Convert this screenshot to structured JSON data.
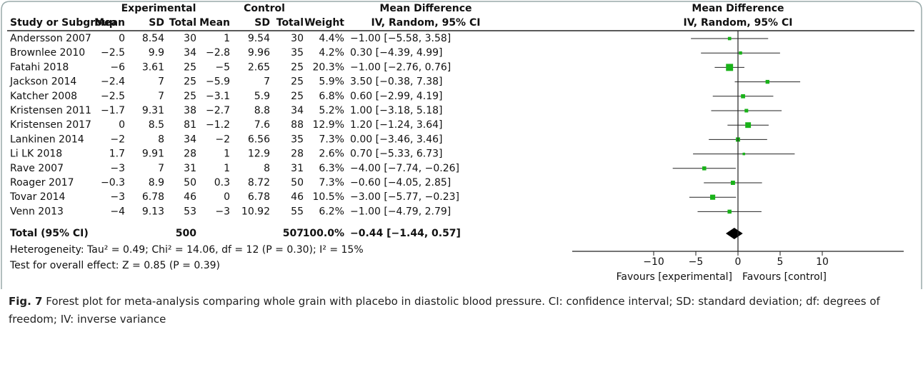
{
  "chart_data": {
    "type": "forest",
    "headers": {
      "group_experimental": "Experimental",
      "group_control": "Control",
      "effect_title": "Mean Difference",
      "effect_method": "IV, Random, 95% CI",
      "plot_title": "Mean Difference",
      "plot_method": "IV, Random, 95% CI",
      "columns": [
        "Study or Subgroup",
        "Mean",
        "SD",
        "Total",
        "Mean",
        "SD",
        "Total",
        "Weight"
      ]
    },
    "studies": [
      {
        "name": "Andersson 2007",
        "e_mean": "0",
        "e_sd": 8.54,
        "e_total": 30,
        "c_mean": "1",
        "c_sd": 9.54,
        "c_total": 30,
        "weight": 4.4,
        "weight_label": "4.4%",
        "ci_label": "−1.00 [−5.58, 3.58]",
        "md": -1.0,
        "lo": -5.58,
        "hi": 3.58
      },
      {
        "name": "Brownlee 2010",
        "e_mean": "−2.5",
        "e_sd": 9.9,
        "e_total": 34,
        "c_mean": "−2.8",
        "c_sd": 9.96,
        "c_total": 35,
        "weight": 4.2,
        "weight_label": "4.2%",
        "ci_label": "0.30 [−4.39, 4.99]",
        "md": 0.3,
        "lo": -4.39,
        "hi": 4.99
      },
      {
        "name": "Fatahi 2018",
        "e_mean": "−6",
        "e_sd": 3.61,
        "e_total": 25,
        "c_mean": "−5",
        "c_sd": 2.65,
        "c_total": 25,
        "weight": 20.3,
        "weight_label": "20.3%",
        "ci_label": "−1.00 [−2.76, 0.76]",
        "md": -1.0,
        "lo": -2.76,
        "hi": 0.76
      },
      {
        "name": "Jackson 2014",
        "e_mean": "−2.4",
        "e_sd": 7,
        "e_total": 25,
        "c_mean": "−5.9",
        "c_sd": 7,
        "c_total": 25,
        "weight": 5.9,
        "weight_label": "5.9%",
        "ci_label": "3.50 [−0.38, 7.38]",
        "md": 3.5,
        "lo": -0.38,
        "hi": 7.38
      },
      {
        "name": "Katcher 2008",
        "e_mean": "−2.5",
        "e_sd": 7,
        "e_total": 25,
        "c_mean": "−3.1",
        "c_sd": 5.9,
        "c_total": 25,
        "weight": 6.8,
        "weight_label": "6.8%",
        "ci_label": "0.60 [−2.99, 4.19]",
        "md": 0.6,
        "lo": -2.99,
        "hi": 4.19
      },
      {
        "name": "Kristensen 2011",
        "e_mean": "−1.7",
        "e_sd": 9.31,
        "e_total": 38,
        "c_mean": "−2.7",
        "c_sd": 8.8,
        "c_total": 34,
        "weight": 5.2,
        "weight_label": "5.2%",
        "ci_label": "1.00 [−3.18, 5.18]",
        "md": 1.0,
        "lo": -3.18,
        "hi": 5.18
      },
      {
        "name": "Kristensen 2017",
        "e_mean": "0",
        "e_sd": 8.5,
        "e_total": 81,
        "c_mean": "−1.2",
        "c_sd": 7.6,
        "c_total": 88,
        "weight": 12.9,
        "weight_label": "12.9%",
        "ci_label": "1.20 [−1.24, 3.64]",
        "md": 1.2,
        "lo": -1.24,
        "hi": 3.64
      },
      {
        "name": "Lankinen 2014",
        "e_mean": "−2",
        "e_sd": 8,
        "e_total": 34,
        "c_mean": "−2",
        "c_sd": 6.56,
        "c_total": 35,
        "weight": 7.3,
        "weight_label": "7.3%",
        "ci_label": "0.00 [−3.46, 3.46]",
        "md": 0.0,
        "lo": -3.46,
        "hi": 3.46
      },
      {
        "name": "Li LK 2018",
        "e_mean": "1.7",
        "e_sd": 9.91,
        "e_total": 28,
        "c_mean": "1",
        "c_sd": 12.9,
        "c_total": 28,
        "weight": 2.6,
        "weight_label": "2.6%",
        "ci_label": "0.70 [−5.33, 6.73]",
        "md": 0.7,
        "lo": -5.33,
        "hi": 6.73
      },
      {
        "name": "Rave 2007",
        "e_mean": "−3",
        "e_sd": 7,
        "e_total": 31,
        "c_mean": "1",
        "c_sd": 8,
        "c_total": 31,
        "weight": 6.3,
        "weight_label": "6.3%",
        "ci_label": "−4.00 [−7.74, −0.26]",
        "md": -4.0,
        "lo": -7.74,
        "hi": -0.26
      },
      {
        "name": "Roager 2017",
        "e_mean": "−0.3",
        "e_sd": 8.9,
        "e_total": 50,
        "c_mean": "0.3",
        "c_sd": 8.72,
        "c_total": 50,
        "weight": 7.3,
        "weight_label": "7.3%",
        "ci_label": "−0.60 [−4.05, 2.85]",
        "md": -0.6,
        "lo": -4.05,
        "hi": 2.85
      },
      {
        "name": "Tovar 2014",
        "e_mean": "−3",
        "e_sd": 6.78,
        "e_total": 46,
        "c_mean": "0",
        "c_sd": 6.78,
        "c_total": 46,
        "weight": 10.5,
        "weight_label": "10.5%",
        "ci_label": "−3.00 [−5.77, −0.23]",
        "md": -3.0,
        "lo": -5.77,
        "hi": -0.23
      },
      {
        "name": "Venn 2013",
        "e_mean": "−4",
        "e_sd": 9.13,
        "e_total": 53,
        "c_mean": "−3",
        "c_sd": 10.92,
        "c_total": 55,
        "weight": 6.2,
        "weight_label": "6.2%",
        "ci_label": "−1.00 [−4.79, 2.79]",
        "md": -1.0,
        "lo": -4.79,
        "hi": 2.79
      }
    ],
    "total": {
      "name": "Total (95% CI)",
      "e_total": 500,
      "c_total": 507,
      "weight": 100.0,
      "weight_label": "100.0%",
      "ci_label": "−0.44 [−1.44, 0.57]",
      "md": -0.44,
      "lo": -1.44,
      "hi": 0.57
    },
    "heterogeneity": "Heterogeneity: Tau² = 0.49; Chi² = 14.06, df = 12 (P = 0.30); I² = 15%",
    "overall_test": "Test for overall effect: Z = 0.85 (P = 0.39)",
    "xlim": [
      -20,
      20
    ],
    "xticks": [
      {
        "value": -10,
        "label": "−10"
      },
      {
        "value": -5,
        "label": "−5"
      },
      0,
      5,
      10
    ],
    "favours_left": "Favours [experimental]",
    "favours_right": "Favours [control]",
    "marker_color": "#19b219",
    "caption_label": "Fig. 7",
    "caption": "Forest plot for meta-analysis comparing whole grain with placebo in diastolic blood pressure. CI: confidence interval; SD: standard deviation; df: degrees of freedom; IV: inverse variance"
  }
}
